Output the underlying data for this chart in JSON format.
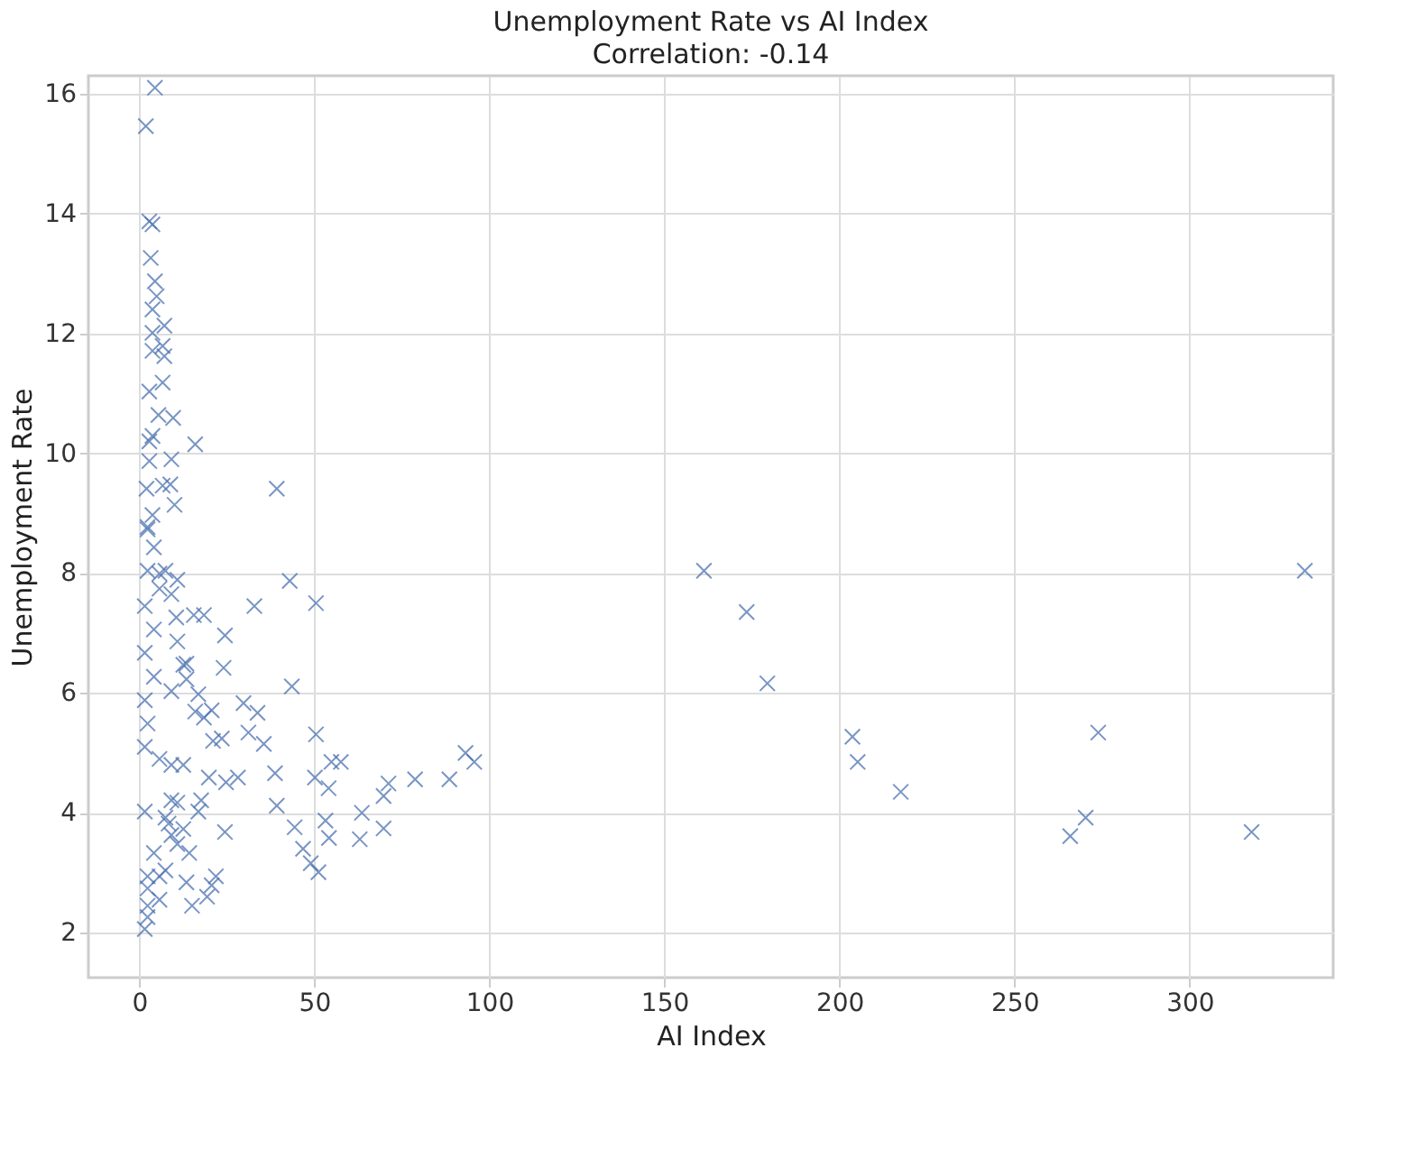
{
  "chart_data": {
    "type": "scatter",
    "title": "Unemployment Rate vs AI Index",
    "subtitle": "Correlation: -0.14",
    "xlabel": "AI Index",
    "ylabel": "Unemployment Rate",
    "x": [
      161.3,
      173.5,
      179.4,
      203.7,
      205.2,
      217.5,
      273.9,
      270.3,
      265.9,
      317.7,
      332.9,
      57.6,
      93.2,
      95.7,
      88.6,
      78.8,
      71.2,
      69.8,
      69.8,
      63.6,
      63.0,
      43.0,
      50.5,
      32.9,
      24.5,
      24.1,
      43.6,
      13.5,
      29.8,
      33.8,
      50.5,
      31.2,
      35.6,
      28.2,
      38.8,
      50.2,
      54.9,
      54.1,
      39.3,
      44.4,
      54.2,
      53.2,
      46.8,
      49.0,
      51.2,
      24.5,
      24.8,
      19.9,
      21.1,
      16.0,
      20.7,
      10.6,
      18.5,
      15.6,
      10.9,
      9.2,
      13.5,
      10.9,
      5.8,
      2.4,
      7.5,
      4.2,
      2.4,
      20.7,
      13.5,
      15.1,
      1.6,
      2.4,
      2.4,
      5.8,
      7.5,
      1.6,
      9.2,
      12.6,
      10.9,
      16.9,
      17.7,
      14.3,
      5.8,
      9.2,
      12.6,
      1.6,
      2.4,
      1.6,
      4.2,
      1.6,
      4.2,
      1.6,
      5.8,
      9.2,
      12.6,
      16.9,
      18.5,
      23.6,
      10.9,
      7.5,
      4.2,
      19.4,
      21.9,
      5.8,
      2.4,
      2.4,
      9.2,
      8.4,
      4.5,
      1.9,
      2.9,
      3.8,
      3.3,
      4.5,
      5.0,
      3.8,
      7.2,
      3.8,
      6.7,
      3.8,
      7.2,
      6.7,
      2.9,
      5.5,
      9.7,
      16.0,
      3.8,
      2.9,
      9.2,
      2.9,
      39.3,
      2.1,
      6.7,
      8.9,
      10.1,
      3.8,
      2.4
    ],
    "series": [
      {
        "color": "#4c72b0",
        "values": [
          8.04,
          7.35,
          6.16,
          5.27,
          4.85,
          4.35,
          5.34,
          3.92,
          3.61,
          3.68,
          8.04,
          4.85,
          5.0,
          4.85,
          4.56,
          4.56,
          4.49,
          4.28,
          3.74,
          4.0,
          3.56,
          7.87,
          7.5,
          7.45,
          6.96,
          6.42,
          6.11,
          6.49,
          5.83,
          5.67,
          5.31,
          5.34,
          5.15,
          4.59,
          4.66,
          4.59,
          4.85,
          4.41,
          4.12,
          3.76,
          3.58,
          3.87,
          3.4,
          3.16,
          3.01,
          3.68,
          4.51,
          4.59,
          5.2,
          5.69,
          5.71,
          7.26,
          7.3,
          7.3,
          6.86,
          6.03,
          6.23,
          7.89,
          7.99,
          8.04,
          8.04,
          8.43,
          8.73,
          2.79,
          2.84,
          2.45,
          2.06,
          2.45,
          2.94,
          2.94,
          3.04,
          4.02,
          3.63,
          3.73,
          4.17,
          4.02,
          4.21,
          3.33,
          4.9,
          4.8,
          4.8,
          5.1,
          5.49,
          5.88,
          6.27,
          6.67,
          7.06,
          7.45,
          7.74,
          7.65,
          6.47,
          5.98,
          5.59,
          5.24,
          3.48,
          3.92,
          3.33,
          2.6,
          2.94,
          2.55,
          2.74,
          2.26,
          4.21,
          3.82,
          16.1,
          15.46,
          13.87,
          13.82,
          13.26,
          12.87,
          12.62,
          12.4,
          12.13,
          12.01,
          11.79,
          11.71,
          11.62,
          11.18,
          11.03,
          10.64,
          10.59,
          10.15,
          10.29,
          10.2,
          9.9,
          9.87,
          9.41,
          9.41,
          9.46,
          9.48,
          9.14,
          8.97,
          8.77
        ]
      }
    ],
    "xlim": [
      -14.5,
      341
    ],
    "ylim": [
      1.25,
      16.3
    ],
    "xticks": [
      0,
      50,
      100,
      150,
      200,
      250,
      300
    ],
    "yticks": [
      2,
      4,
      6,
      8,
      10,
      12,
      14,
      16
    ],
    "grid": true,
    "marker": "cross"
  }
}
